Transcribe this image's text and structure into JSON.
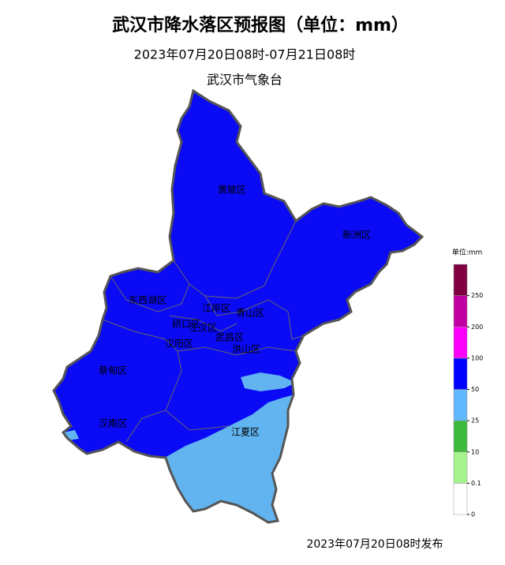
{
  "header": {
    "title": "武汉市降水落区预报图（单位：mm）",
    "period": "2023年07月20日08时-07月21日08时",
    "issuer": "武汉市气象台"
  },
  "districts": [
    {
      "label": "黄陂区"
    },
    {
      "label": "新洲区"
    },
    {
      "label": "东西湖区"
    },
    {
      "label": "江岸区"
    },
    {
      "label": "青山区"
    },
    {
      "label": "硚口区"
    },
    {
      "label": "江汉区"
    },
    {
      "label": "汉阳区"
    },
    {
      "label": "武昌区"
    },
    {
      "label": "洪山区"
    },
    {
      "label": "蔡甸区"
    },
    {
      "label": "汉南区"
    },
    {
      "label": "江夏区"
    }
  ],
  "legend": {
    "unit": "单位:mm",
    "ticks": [
      0,
      0.1,
      10,
      25,
      50,
      100,
      200,
      250
    ],
    "colors": [
      "#ffffff",
      "#a6f28f",
      "#3dba3d",
      "#61b8ff",
      "#0000ff",
      "#fa00fa",
      "#c000a0",
      "#800040"
    ]
  },
  "footer": "2023年07月20日08时发布"
}
